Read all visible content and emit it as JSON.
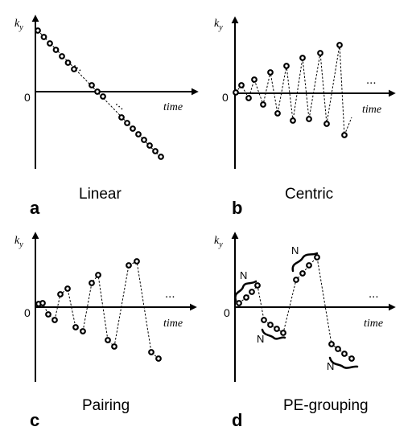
{
  "panels": [
    {
      "id": "a",
      "letter": "a",
      "title": "Linear",
      "ylabel": "k",
      "ysub": "y",
      "xlabel": "time",
      "zero": "0",
      "ellipsis": "",
      "group_label": ""
    },
    {
      "id": "b",
      "letter": "b",
      "title": "Centric",
      "ylabel": "k",
      "ysub": "y",
      "xlabel": "time",
      "zero": "0",
      "ellipsis": "...",
      "group_label": ""
    },
    {
      "id": "c",
      "letter": "c",
      "title": "Pairing",
      "ylabel": "k",
      "ysub": "y",
      "xlabel": "time",
      "zero": "0",
      "ellipsis": "...",
      "group_label": ""
    },
    {
      "id": "d",
      "letter": "d",
      "title": "PE-grouping",
      "ylabel": "k",
      "ysub": "y",
      "xlabel": "time",
      "zero": "0",
      "ellipsis": "...",
      "group_label": "N"
    }
  ],
  "colors": {
    "ink": "#000000",
    "background": "#ffffff",
    "marker_fill": "#ffffff"
  }
}
